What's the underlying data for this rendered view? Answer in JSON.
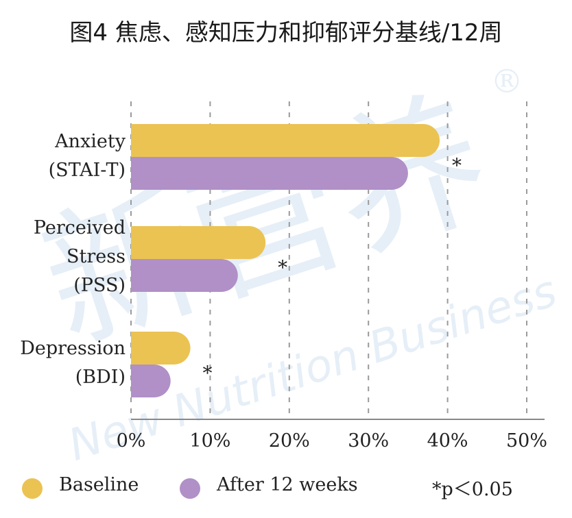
{
  "title": "图4 焦虑、感知压力和抑郁评分基线/12周",
  "colors": {
    "baseline": "#EBC352",
    "after": "#B090C7",
    "grid": "#9a9a9a",
    "axis": "#888888"
  },
  "watermark": {
    "cn": "新营养",
    "en": "New Nutrition Business",
    "reg": "®"
  },
  "legend": {
    "baseline_label": "Baseline",
    "after_label": "After 12 weeks",
    "note": "*p＜0.05"
  },
  "categories": [
    {
      "lines": [
        "Anxiety",
        "(STAI-T)"
      ]
    },
    {
      "lines": [
        "Perceived",
        "Stress",
        "(PSS)"
      ]
    },
    {
      "lines": [
        "Depression",
        "(BDI)"
      ]
    }
  ],
  "chart_data": {
    "type": "bar",
    "orientation": "horizontal",
    "categories": [
      "Anxiety (STAI-T)",
      "Perceived Stress (PSS)",
      "Depression (BDI)"
    ],
    "series": [
      {
        "name": "Baseline",
        "values": [
          39,
          17,
          7.5
        ]
      },
      {
        "name": "After 12 weeks",
        "values": [
          35,
          13.5,
          5
        ]
      }
    ],
    "significance": [
      "*",
      "*",
      "*"
    ],
    "xlim": [
      0,
      50
    ],
    "xticks": [
      "0%",
      "10%",
      "20%",
      "30%",
      "40%",
      "50%"
    ],
    "grid": "vertical-dashed",
    "legend": "bottom"
  }
}
